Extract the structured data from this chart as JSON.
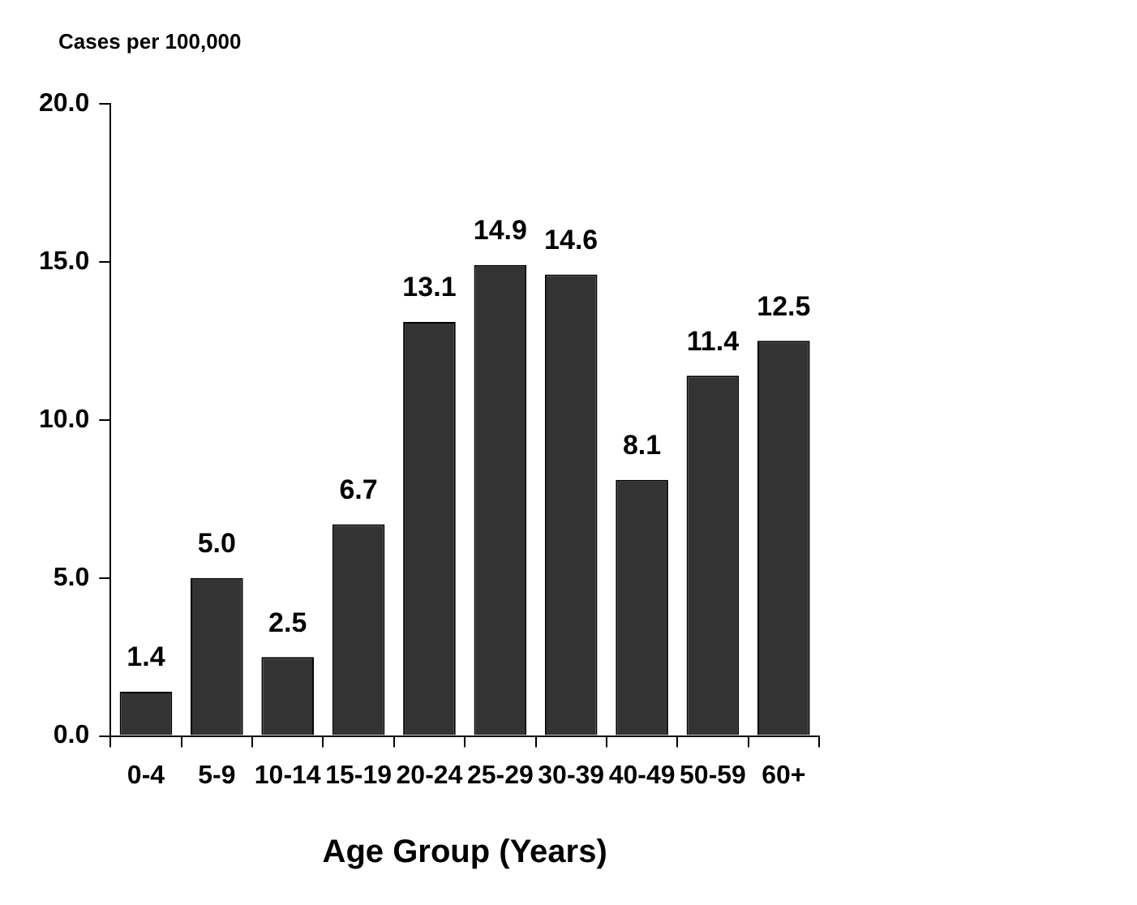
{
  "chart_data": {
    "type": "bar",
    "ylabel": "Cases per 100,000",
    "xlabel": "Age Group (Years)",
    "categories": [
      "0-4",
      "5-9",
      "10-14",
      "15-19",
      "20-24",
      "25-29",
      "30-39",
      "40-49",
      "50-59",
      "60+"
    ],
    "values": [
      1.4,
      5.0,
      2.5,
      6.7,
      13.1,
      14.9,
      14.6,
      8.1,
      11.4,
      12.5
    ],
    "value_labels": [
      "1.4",
      "5.0",
      "2.5",
      "6.7",
      "13.1",
      "14.9",
      "14.6",
      "8.1",
      "11.4",
      "12.5"
    ],
    "color": "#333333",
    "ylim": [
      0,
      20
    ],
    "yticks": [
      {
        "value": 0,
        "label": "0.0"
      },
      {
        "value": 5,
        "label": "5.0"
      },
      {
        "value": 10,
        "label": "10.0"
      },
      {
        "value": 15,
        "label": "15.0"
      },
      {
        "value": 20,
        "label": "20.0"
      }
    ],
    "grid": false,
    "legend": false
  }
}
